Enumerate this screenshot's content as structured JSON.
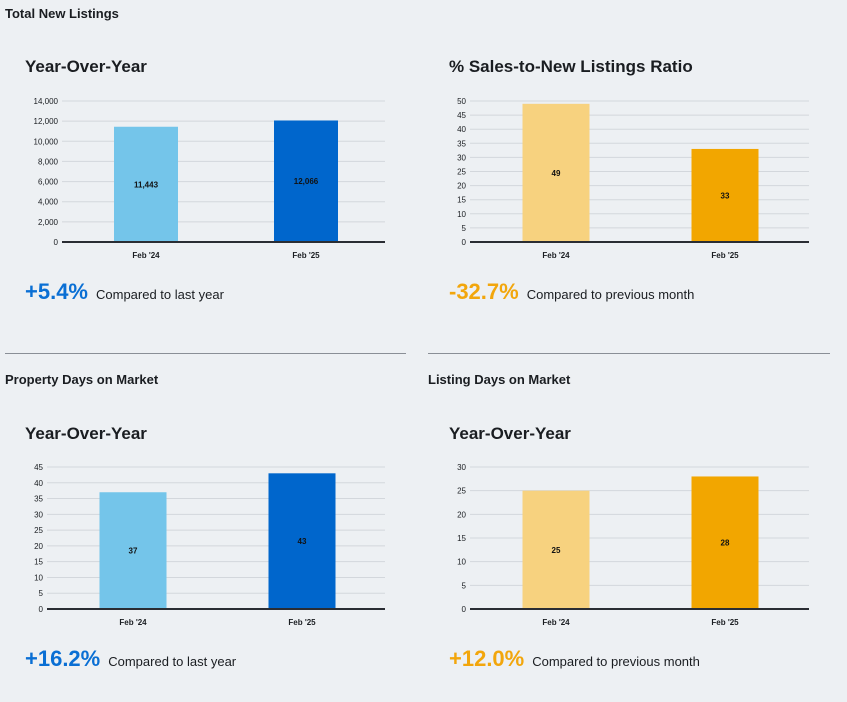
{
  "sections": [
    {
      "title": "Total New Listings"
    },
    {
      "title": "Property Days on Market"
    },
    {
      "title": "Listing Days on Market"
    }
  ],
  "charts": [
    {
      "title": "Year-Over-Year",
      "stat_value": "+5.4%",
      "stat_caption": "Compared to last year",
      "stat_color": "#0a6fd4"
    },
    {
      "title": "% Sales-to-New Listings Ratio",
      "stat_value": "-32.7%",
      "stat_caption": "Compared to previous month",
      "stat_color": "#f2a60c"
    },
    {
      "title": "Year-Over-Year",
      "stat_value": "+16.2%",
      "stat_caption": "Compared to last year",
      "stat_color": "#0a6fd4"
    },
    {
      "title": "Year-Over-Year",
      "stat_value": "+12.0%",
      "stat_caption": "Compared to previous month",
      "stat_color": "#f2a60c"
    }
  ],
  "chart_data": [
    {
      "type": "bar",
      "categories": [
        "Feb '24",
        "Feb '25"
      ],
      "values": [
        11443,
        12066
      ],
      "labels": [
        "11,443",
        "12,066"
      ],
      "ylim": [
        0,
        14000
      ],
      "yticks": [
        0,
        2000,
        4000,
        6000,
        8000,
        10000,
        12000,
        14000
      ],
      "ytick_labels": [
        "0",
        "2,000",
        "4,000",
        "6,000",
        "8,000",
        "10,000",
        "12,000",
        "14,000"
      ],
      "colors": [
        "#74c5ea",
        "#0066cc"
      ],
      "grid": true
    },
    {
      "type": "bar",
      "categories": [
        "Feb '24",
        "Feb '25"
      ],
      "values": [
        49,
        33
      ],
      "labels": [
        "49",
        "33"
      ],
      "ylim": [
        0,
        50
      ],
      "yticks": [
        0,
        5,
        10,
        15,
        20,
        25,
        30,
        35,
        40,
        45,
        50
      ],
      "ytick_labels": [
        "0",
        "5",
        "10",
        "15",
        "20",
        "25",
        "30",
        "35",
        "40",
        "45",
        "50"
      ],
      "colors": [
        "#f7d27f",
        "#f2a600"
      ],
      "grid": true
    },
    {
      "type": "bar",
      "categories": [
        "Feb '24",
        "Feb '25"
      ],
      "values": [
        37,
        43
      ],
      "labels": [
        "37",
        "43"
      ],
      "ylim": [
        0,
        45
      ],
      "yticks": [
        0,
        5,
        10,
        15,
        20,
        25,
        30,
        35,
        40,
        45
      ],
      "ytick_labels": [
        "0",
        "5",
        "10",
        "15",
        "20",
        "25",
        "30",
        "35",
        "40",
        "45"
      ],
      "colors": [
        "#74c5ea",
        "#0066cc"
      ],
      "grid": true
    },
    {
      "type": "bar",
      "categories": [
        "Feb '24",
        "Feb '25"
      ],
      "values": [
        25,
        28
      ],
      "labels": [
        "25",
        "28"
      ],
      "ylim": [
        0,
        30
      ],
      "yticks": [
        0,
        5,
        10,
        15,
        20,
        25,
        30
      ],
      "ytick_labels": [
        "0",
        "5",
        "10",
        "15",
        "20",
        "25",
        "30"
      ],
      "colors": [
        "#f7d27f",
        "#f2a600"
      ],
      "grid": true
    }
  ]
}
